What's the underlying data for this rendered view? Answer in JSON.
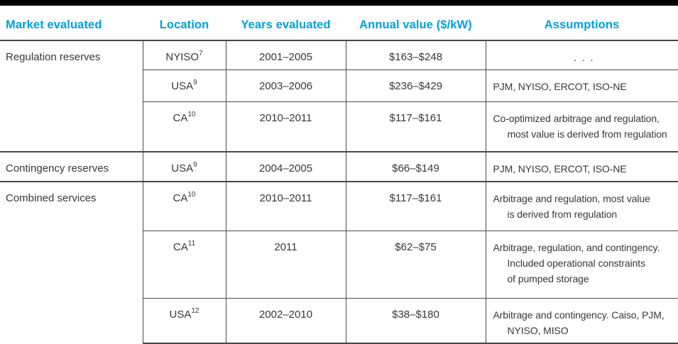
{
  "colors": {
    "header_text": "#00a0dc",
    "top_bar": "#000000",
    "rule": "#4a4a4a",
    "body_text": "#383838"
  },
  "table": {
    "columns": [
      "Market evaluated",
      "Location",
      "Years evaluated",
      "Annual value ($/kW)",
      "Assumptions"
    ],
    "groups": [
      {
        "market": "Regulation reserves",
        "rows": [
          {
            "location": "NYISO",
            "location_sup": "7",
            "years": "2001–2005",
            "value": "$163–$248",
            "assumptions": [
              ". . ."
            ]
          },
          {
            "location": "USA",
            "location_sup": "9",
            "years": "2003–2006",
            "value": "$236–$429",
            "assumptions": [
              "PJM, NYISO, ERCOT, ISO-NE"
            ]
          },
          {
            "location": "CA",
            "location_sup": "10",
            "years": "2010–2011",
            "value": "$117–$161",
            "assumptions": [
              "Co-optimized arbitrage and regulation,",
              "most value is derived from regulation"
            ]
          }
        ]
      },
      {
        "market": "Contingency reserves",
        "rows": [
          {
            "location": "USA",
            "location_sup": "9",
            "years": "2004–2005",
            "value": "$66–$149",
            "assumptions": [
              "PJM, NYISO, ERCOT, ISO-NE"
            ]
          }
        ]
      },
      {
        "market": "Combined services",
        "rows": [
          {
            "location": "CA",
            "location_sup": "10",
            "years": "2010–2011",
            "value": "$117–$161",
            "assumptions": [
              "Arbitrage and regulation, most value",
              "is derived from regulation"
            ]
          },
          {
            "location": "CA",
            "location_sup": "11",
            "years": "2011",
            "value": "$62–$75",
            "assumptions": [
              "Arbitrage, regulation, and contingency.",
              "Included operational constraints",
              "of pumped storage"
            ]
          },
          {
            "location": "USA",
            "location_sup": "12",
            "years": "2002–2010",
            "value": "$38–$180",
            "assumptions": [
              "Arbitrage and contingency. Caiso, PJM,",
              "NYISO, MISO"
            ]
          }
        ]
      }
    ]
  }
}
